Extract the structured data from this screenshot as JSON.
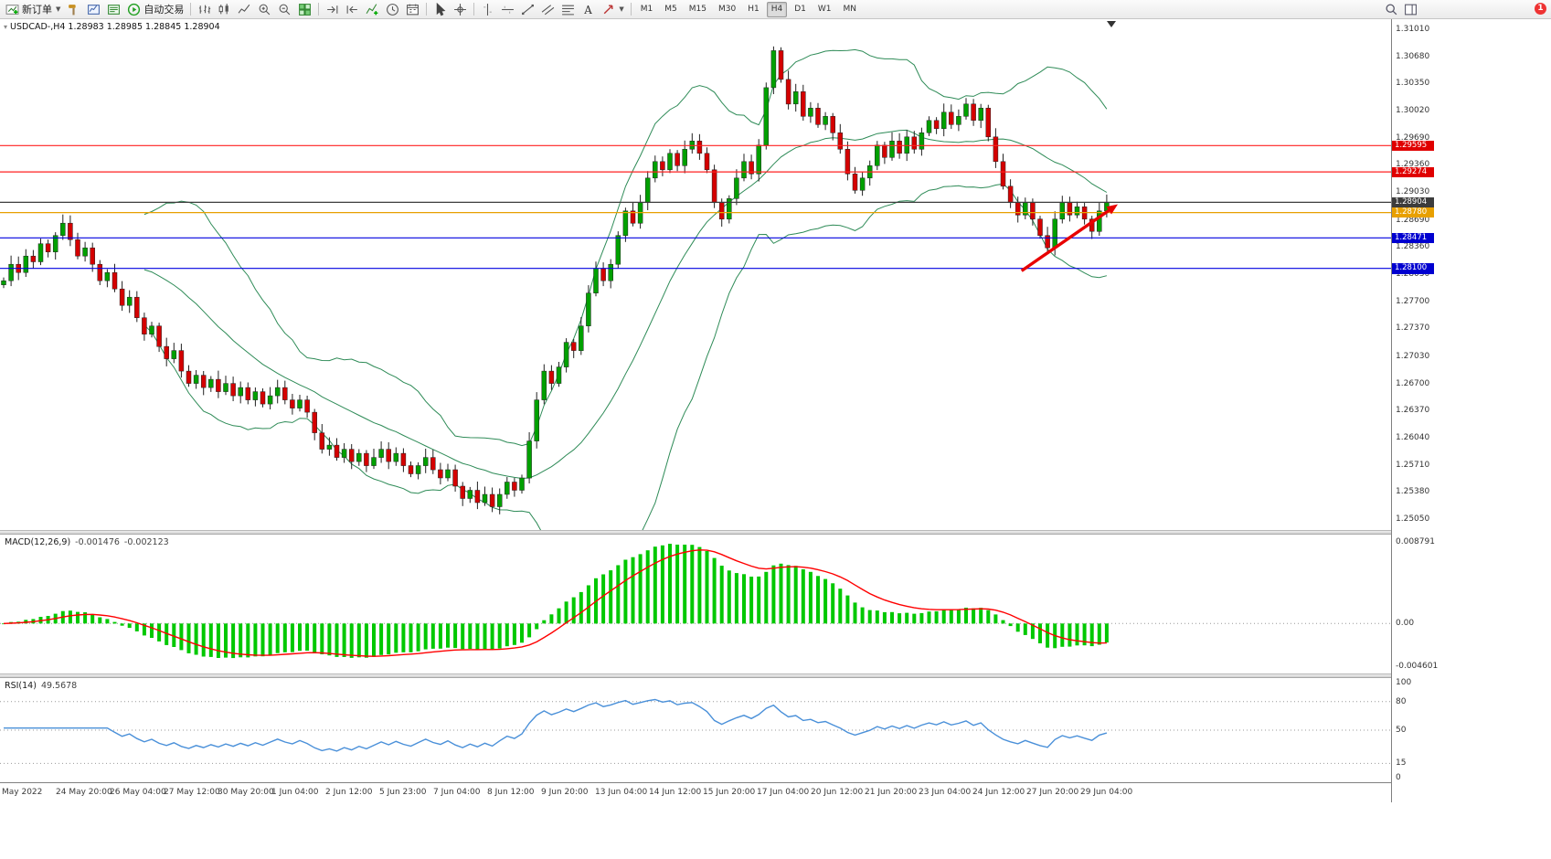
{
  "toolbar": {
    "items": [
      {
        "type": "button",
        "name": "new-order",
        "icon": "new-order",
        "label": "新订单",
        "caret": true
      },
      {
        "type": "icon",
        "name": "scripts",
        "icon": "hammer"
      },
      {
        "type": "icon",
        "name": "market-watch",
        "icon": "chart-window"
      },
      {
        "type": "icon",
        "name": "data-window",
        "icon": "chart-window2"
      },
      {
        "type": "button",
        "name": "auto-trading",
        "icon": "autotrade",
        "label": "自动交易"
      },
      {
        "type": "sep"
      },
      {
        "type": "icon",
        "name": "bar-chart-mode",
        "icon": "bars"
      },
      {
        "type": "icon",
        "name": "candlestick-chart-mode",
        "icon": "candles"
      },
      {
        "type": "icon",
        "name": "line-chart-mode",
        "icon": "linechart"
      },
      {
        "type": "icon",
        "name": "zoom-in",
        "icon": "zoom-in"
      },
      {
        "type": "icon",
        "name": "zoom-out",
        "icon": "zoom-out"
      },
      {
        "type": "icon",
        "name": "tile-windows",
        "icon": "tile"
      },
      {
        "type": "sep"
      },
      {
        "type": "icon",
        "name": "auto-scroll",
        "icon": "autoscroll"
      },
      {
        "type": "icon",
        "name": "chart-shift",
        "icon": "shift"
      },
      {
        "type": "icon",
        "name": "indicators-list",
        "icon": "indicators"
      },
      {
        "type": "icon",
        "name": "periodicity",
        "icon": "clock"
      },
      {
        "type": "icon",
        "name": "templates",
        "icon": "calendar"
      },
      {
        "type": "sep"
      },
      {
        "type": "icon",
        "name": "cursor",
        "icon": "cursor"
      },
      {
        "type": "icon",
        "name": "crosshair",
        "icon": "crosshair"
      },
      {
        "type": "sep"
      },
      {
        "type": "icon",
        "name": "vertical-line-tool",
        "icon": "vline"
      },
      {
        "type": "icon",
        "name": "horizontal-line-tool",
        "icon": "hline"
      },
      {
        "type": "icon",
        "name": "trendline-tool",
        "icon": "trend"
      },
      {
        "type": "icon",
        "name": "equidistant-channel-tool",
        "icon": "channel"
      },
      {
        "type": "icon",
        "name": "fibonacci-tool",
        "icon": "fibo"
      },
      {
        "type": "icon",
        "name": "text-tool",
        "icon": "text"
      },
      {
        "type": "icon",
        "name": "arrows-tool",
        "icon": "arrows",
        "caret": true
      },
      {
        "type": "sep"
      }
    ],
    "timeframes": [
      {
        "label": "M1"
      },
      {
        "label": "M5"
      },
      {
        "label": "M15"
      },
      {
        "label": "M30"
      },
      {
        "label": "H1"
      },
      {
        "label": "H4",
        "active": true
      },
      {
        "label": "D1"
      },
      {
        "label": "W1"
      },
      {
        "label": "MN"
      }
    ],
    "right_items": [
      {
        "name": "search",
        "icon": "search"
      },
      {
        "name": "side-panel",
        "icon": "panel"
      }
    ],
    "badge": "1"
  },
  "chart": {
    "symbol_label": "USDCAD-,H4  1.28983 1.28985 1.28845 1.28904",
    "price_range": {
      "max": 1.3101,
      "min": 1.2505
    },
    "colors": {
      "bull": "#00A000",
      "bear": "#D40000",
      "wick": "#222222",
      "bollinger": "#2E8B57",
      "macd_hist": "#00C800",
      "macd_signal": "#FF0000",
      "rsi_line": "#4A90D9",
      "grid": "#999999",
      "arrow": "#E80000"
    },
    "hlines": [
      {
        "price": 1.29595,
        "color": "#FF2020"
      },
      {
        "price": 1.29274,
        "color": "#FF2020"
      },
      {
        "price": 1.28904,
        "color": "#3C3C3C"
      },
      {
        "price": 1.2878,
        "color": "#E8A000"
      },
      {
        "price": 1.28471,
        "color": "#0000E0"
      },
      {
        "price": 1.281,
        "color": "#0000E0"
      }
    ],
    "tags": [
      {
        "text": "1.29595",
        "price": 1.29595,
        "color": "#E00000"
      },
      {
        "text": "1.29274",
        "price": 1.29274,
        "color": "#E00000"
      },
      {
        "text": "1.28904",
        "price": 1.28904,
        "color": "#3C3C3C"
      },
      {
        "text": "1.28780",
        "price": 1.2878,
        "color": "#E8A000"
      },
      {
        "text": "1.28471",
        "price": 1.28471,
        "color": "#0000D0"
      },
      {
        "text": "1.28100",
        "price": 1.281,
        "color": "#0000D0"
      }
    ],
    "price_axis": {
      "labels": [
        {
          "text": "1.31010",
          "price": 1.3101
        },
        {
          "text": "1.30680",
          "price": 1.3068
        },
        {
          "text": "1.30350",
          "price": 1.3035
        },
        {
          "text": "1.30020",
          "price": 1.3002
        },
        {
          "text": "1.29690",
          "price": 1.2969
        },
        {
          "text": "1.29360",
          "price": 1.2936
        },
        {
          "text": "1.29030",
          "price": 1.2903
        },
        {
          "text": "1.28690",
          "price": 1.2869
        },
        {
          "text": "1.28360",
          "price": 1.2836
        },
        {
          "text": "1.28030",
          "price": 1.2803
        },
        {
          "text": "1.27700",
          "price": 1.277
        },
        {
          "text": "1.27370",
          "price": 1.2737
        },
        {
          "text": "1.27030",
          "price": 1.2703
        },
        {
          "text": "1.26700",
          "price": 1.267
        },
        {
          "text": "1.26370",
          "price": 1.2637
        },
        {
          "text": "1.26040",
          "price": 1.2604
        },
        {
          "text": "1.25710",
          "price": 1.2571
        },
        {
          "text": "1.25380",
          "price": 1.2538
        },
        {
          "text": "1.25050",
          "price": 1.2505
        }
      ]
    },
    "annotation_arrow": {
      "from_index": 137.5,
      "from_price": 1.2807,
      "to_index": 150.5,
      "to_price": 1.2888
    }
  },
  "chart_data": {
    "type": "candlestick",
    "symbol": "USDCAD",
    "timeframe": "H4",
    "ohlc_current": {
      "open": "1.28983",
      "high": "1.28985",
      "low": "1.28845",
      "close": "1.28904"
    },
    "first_open": 1.279,
    "closes": [
      1.2795,
      1.2815,
      1.2805,
      1.2825,
      1.2818,
      1.284,
      1.283,
      1.285,
      1.2865,
      1.2845,
      1.2825,
      1.2835,
      1.2815,
      1.2795,
      1.2805,
      1.2785,
      1.2765,
      1.2775,
      1.275,
      1.273,
      1.274,
      1.2715,
      1.27,
      1.271,
      1.2685,
      1.267,
      1.268,
      1.2665,
      1.2675,
      1.266,
      1.267,
      1.2655,
      1.2665,
      1.265,
      1.266,
      1.2645,
      1.2655,
      1.2665,
      1.265,
      1.264,
      1.265,
      1.2635,
      1.261,
      1.259,
      1.2595,
      1.258,
      1.259,
      1.2575,
      1.2585,
      1.257,
      1.258,
      1.259,
      1.2575,
      1.2585,
      1.257,
      1.256,
      1.257,
      1.258,
      1.2565,
      1.2555,
      1.2565,
      1.2545,
      1.253,
      1.254,
      1.2525,
      1.2535,
      1.252,
      1.2535,
      1.255,
      1.254,
      1.2555,
      1.26,
      1.265,
      1.2685,
      1.267,
      1.269,
      1.272,
      1.271,
      1.274,
      1.278,
      1.281,
      1.2795,
      1.2815,
      1.285,
      1.288,
      1.2865,
      1.289,
      1.292,
      1.294,
      1.293,
      1.295,
      1.2935,
      1.2955,
      1.2965,
      1.295,
      1.293,
      1.289,
      1.287,
      1.2895,
      1.292,
      1.294,
      1.2925,
      1.296,
      1.303,
      1.3075,
      1.304,
      1.301,
      1.3025,
      1.2995,
      1.3005,
      1.2985,
      1.2995,
      1.2975,
      1.2955,
      1.2925,
      1.2905,
      1.292,
      1.2935,
      1.296,
      1.2945,
      1.2965,
      1.295,
      1.297,
      1.2955,
      1.2975,
      1.299,
      1.298,
      1.3,
      1.2985,
      1.2995,
      1.301,
      1.299,
      1.3005,
      1.297,
      1.294,
      1.291,
      1.289,
      1.2875,
      1.289,
      1.287,
      1.285,
      1.2835,
      1.287,
      1.289,
      1.2875,
      1.2885,
      1.287,
      1.2855,
      1.288,
      1.28904
    ],
    "indicators": {
      "bollinger": {
        "period": 20,
        "deviation": 2
      },
      "macd": {
        "fast": 12,
        "slow": 26,
        "signal": 9,
        "current": "-0.001476",
        "current_signal": "-0.002123"
      },
      "rsi": {
        "period": 14,
        "current": "49.5678"
      }
    }
  },
  "macd_panel": {
    "header": "MACD(12,26,9)",
    "value1": "-0.001476",
    "value2": "-0.002123",
    "range": {
      "max": 0.0088,
      "min": -0.0046
    },
    "axis": [
      {
        "text": "0.008791",
        "value": 0.008791
      },
      {
        "text": "0.00",
        "value": 0
      },
      {
        "text": "-0.004601",
        "value": -0.004601
      }
    ]
  },
  "rsi_panel": {
    "header": "RSI(14)",
    "value": "49.5678",
    "range": {
      "max": 100,
      "min": 0
    },
    "levels": [
      80,
      50,
      15
    ],
    "axis": [
      {
        "text": "100",
        "value": 100
      },
      {
        "text": "80",
        "value": 80
      },
      {
        "text": "50",
        "value": 50
      },
      {
        "text": "15",
        "value": 15
      },
      {
        "text": "0",
        "value": 0
      }
    ]
  },
  "time_axis": {
    "labels": [
      "May 2022",
      "24 May 20:00",
      "26 May 04:00",
      "27 May 12:00",
      "30 May 20:00",
      "1 Jun 04:00",
      "2 Jun 12:00",
      "5 Jun 23:00",
      "7 Jun 04:00",
      "8 Jun 12:00",
      "9 Jun 20:00",
      "13 Jun 04:00",
      "14 Jun 12:00",
      "15 Jun 20:00",
      "17 Jun 04:00",
      "20 Jun 12:00",
      "21 Jun 20:00",
      "23 Jun 04:00",
      "24 Jun 12:00",
      "27 Jun 20:00",
      "29 Jun 04:00"
    ]
  }
}
